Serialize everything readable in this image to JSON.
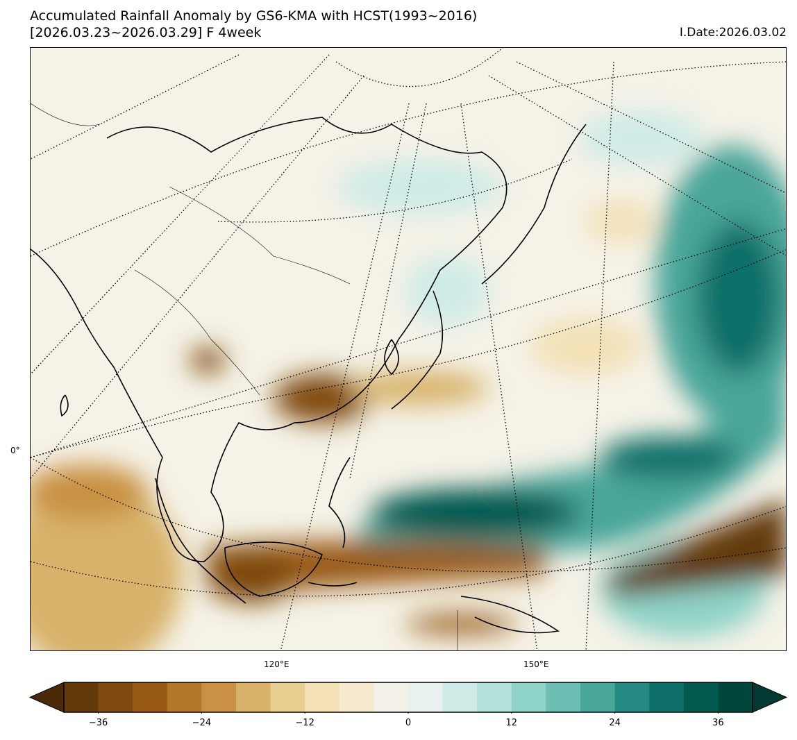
{
  "title": {
    "line1": "Accumulated Rainfall Anomaly by GS6-KMA with HCST(1993~2016)",
    "line2": "[2026.03.23~2026.03.29] F 4week",
    "init_date": "I.Date:2026.03.02"
  },
  "map": {
    "projection": "polar stereographic (conic view)",
    "lat_labels": [
      "0°"
    ],
    "lon_labels": [
      "120°E",
      "150°E"
    ],
    "graticule": "dotted",
    "background_color": "#f5f2e7"
  },
  "colorbar": {
    "levels_min": -40,
    "levels_max": 40,
    "step": 4,
    "extend": "both",
    "ticks": [
      "−36",
      "−24",
      "−12",
      "0",
      "12",
      "24",
      "36"
    ],
    "under_color": "#4a2a08",
    "over_color": "#003a32",
    "colors": [
      "#633a0a",
      "#7f4a0d",
      "#985a15",
      "#b3782a",
      "#c89143",
      "#d8b26b",
      "#e7cf92",
      "#f3e0b6",
      "#f6ebd1",
      "#f4f2e8",
      "#e8f1ef",
      "#cfebe7",
      "#b2e1da",
      "#90d3c8",
      "#6cbfb2",
      "#48a59a",
      "#258a81",
      "#0f6f69",
      "#03594f",
      "#00463c"
    ]
  }
}
